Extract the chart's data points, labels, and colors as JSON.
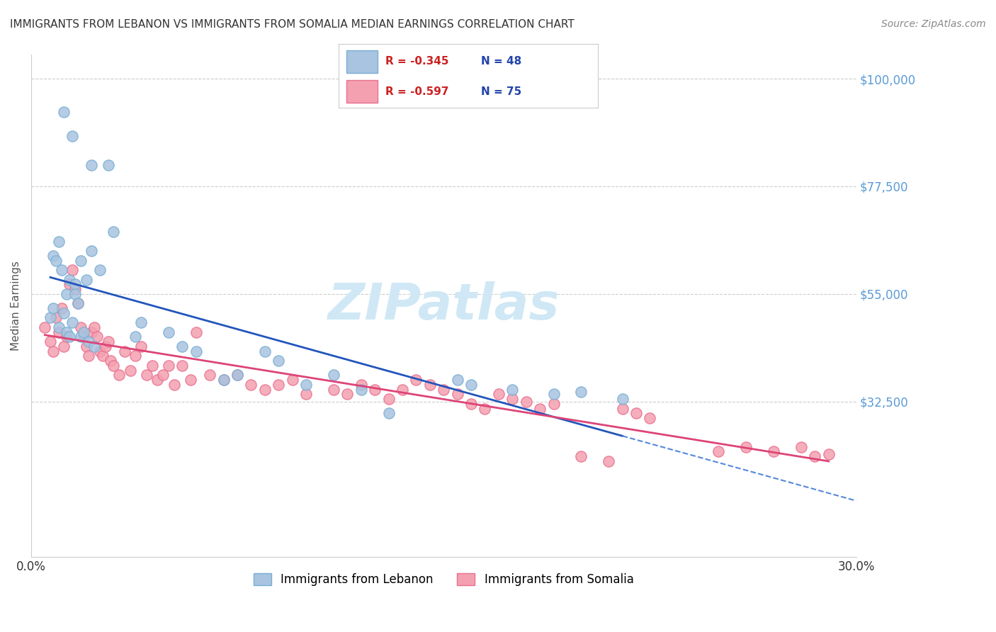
{
  "title": "IMMIGRANTS FROM LEBANON VS IMMIGRANTS FROM SOMALIA MEDIAN EARNINGS CORRELATION CHART",
  "source": "Source: ZipAtlas.com",
  "xlabel": "",
  "ylabel": "Median Earnings",
  "xlim": [
    0.0,
    0.3
  ],
  "ylim": [
    0,
    105000
  ],
  "yticks": [
    0,
    32500,
    55000,
    77500,
    100000
  ],
  "ytick_labels": [
    "",
    "$32,500",
    "$55,000",
    "$77,500",
    "$100,000"
  ],
  "xticks": [
    0.0,
    0.05,
    0.1,
    0.15,
    0.2,
    0.25,
    0.3
  ],
  "xtick_labels": [
    "0.0%",
    "",
    "",
    "",
    "",
    "",
    "30.0%"
  ],
  "background_color": "#ffffff",
  "grid_color": "#cccccc",
  "axis_color": "#cccccc",
  "ytick_color": "#5b9bd5",
  "xtick_color": "#333333",
  "title_color": "#333333",
  "source_color": "#888888",
  "lebanon_color": "#a8c4e0",
  "somalia_color": "#f4a0b0",
  "lebanon_edge_color": "#7aafd4",
  "somalia_edge_color": "#e87090",
  "legend_lebanon_color": "#a8c4e0",
  "legend_somalia_color": "#f4a0b0",
  "R_lebanon": "-0.345",
  "N_lebanon": "48",
  "R_somalia": "-0.597",
  "N_somalia": "75",
  "legend_label_lebanon": "Immigrants from Lebanon",
  "legend_label_somalia": "Immigrants from Somalia",
  "watermark_text": "ZIPatlas",
  "watermark_color": "#d0e8f5",
  "lebanon_x": [
    0.012,
    0.015,
    0.022,
    0.028,
    0.008,
    0.009,
    0.01,
    0.011,
    0.013,
    0.014,
    0.016,
    0.018,
    0.02,
    0.022,
    0.025,
    0.007,
    0.008,
    0.01,
    0.012,
    0.013,
    0.014,
    0.015,
    0.016,
    0.017,
    0.018,
    0.019,
    0.021,
    0.023,
    0.03,
    0.038,
    0.04,
    0.05,
    0.055,
    0.06,
    0.07,
    0.075,
    0.085,
    0.09,
    0.1,
    0.11,
    0.12,
    0.13,
    0.155,
    0.16,
    0.175,
    0.19,
    0.2,
    0.215
  ],
  "lebanon_y": [
    93000,
    88000,
    82000,
    82000,
    63000,
    62000,
    66000,
    60000,
    55000,
    58000,
    57000,
    62000,
    58000,
    64000,
    60000,
    50000,
    52000,
    48000,
    51000,
    47000,
    46000,
    49000,
    55000,
    53000,
    46000,
    47000,
    45000,
    44000,
    68000,
    46000,
    49000,
    47000,
    44000,
    43000,
    37000,
    38000,
    43000,
    41000,
    36000,
    38000,
    35000,
    30000,
    37000,
    36000,
    35000,
    34000,
    34500,
    33000
  ],
  "somalia_x": [
    0.005,
    0.007,
    0.008,
    0.009,
    0.01,
    0.011,
    0.012,
    0.013,
    0.014,
    0.015,
    0.016,
    0.017,
    0.018,
    0.019,
    0.02,
    0.021,
    0.022,
    0.023,
    0.024,
    0.025,
    0.026,
    0.027,
    0.028,
    0.029,
    0.03,
    0.032,
    0.034,
    0.036,
    0.038,
    0.04,
    0.042,
    0.044,
    0.046,
    0.048,
    0.05,
    0.052,
    0.055,
    0.058,
    0.06,
    0.065,
    0.07,
    0.075,
    0.08,
    0.085,
    0.09,
    0.095,
    0.1,
    0.11,
    0.115,
    0.12,
    0.125,
    0.13,
    0.135,
    0.14,
    0.145,
    0.15,
    0.155,
    0.16,
    0.165,
    0.17,
    0.175,
    0.18,
    0.185,
    0.19,
    0.2,
    0.21,
    0.215,
    0.22,
    0.225,
    0.25,
    0.26,
    0.27,
    0.28,
    0.285,
    0.29
  ],
  "somalia_y": [
    48000,
    45000,
    43000,
    50000,
    47000,
    52000,
    44000,
    46000,
    57000,
    60000,
    56000,
    53000,
    48000,
    46000,
    44000,
    42000,
    47000,
    48000,
    46000,
    43000,
    42000,
    44000,
    45000,
    41000,
    40000,
    38000,
    43000,
    39000,
    42000,
    44000,
    38000,
    40000,
    37000,
    38000,
    40000,
    36000,
    40000,
    37000,
    47000,
    38000,
    37000,
    38000,
    36000,
    35000,
    36000,
    37000,
    34000,
    35000,
    34000,
    36000,
    35000,
    33000,
    35000,
    37000,
    36000,
    35000,
    34000,
    32000,
    31000,
    34000,
    33000,
    32500,
    31000,
    32000,
    21000,
    20000,
    31000,
    30000,
    29000,
    22000,
    23000,
    22000,
    23000,
    21000,
    21500
  ]
}
